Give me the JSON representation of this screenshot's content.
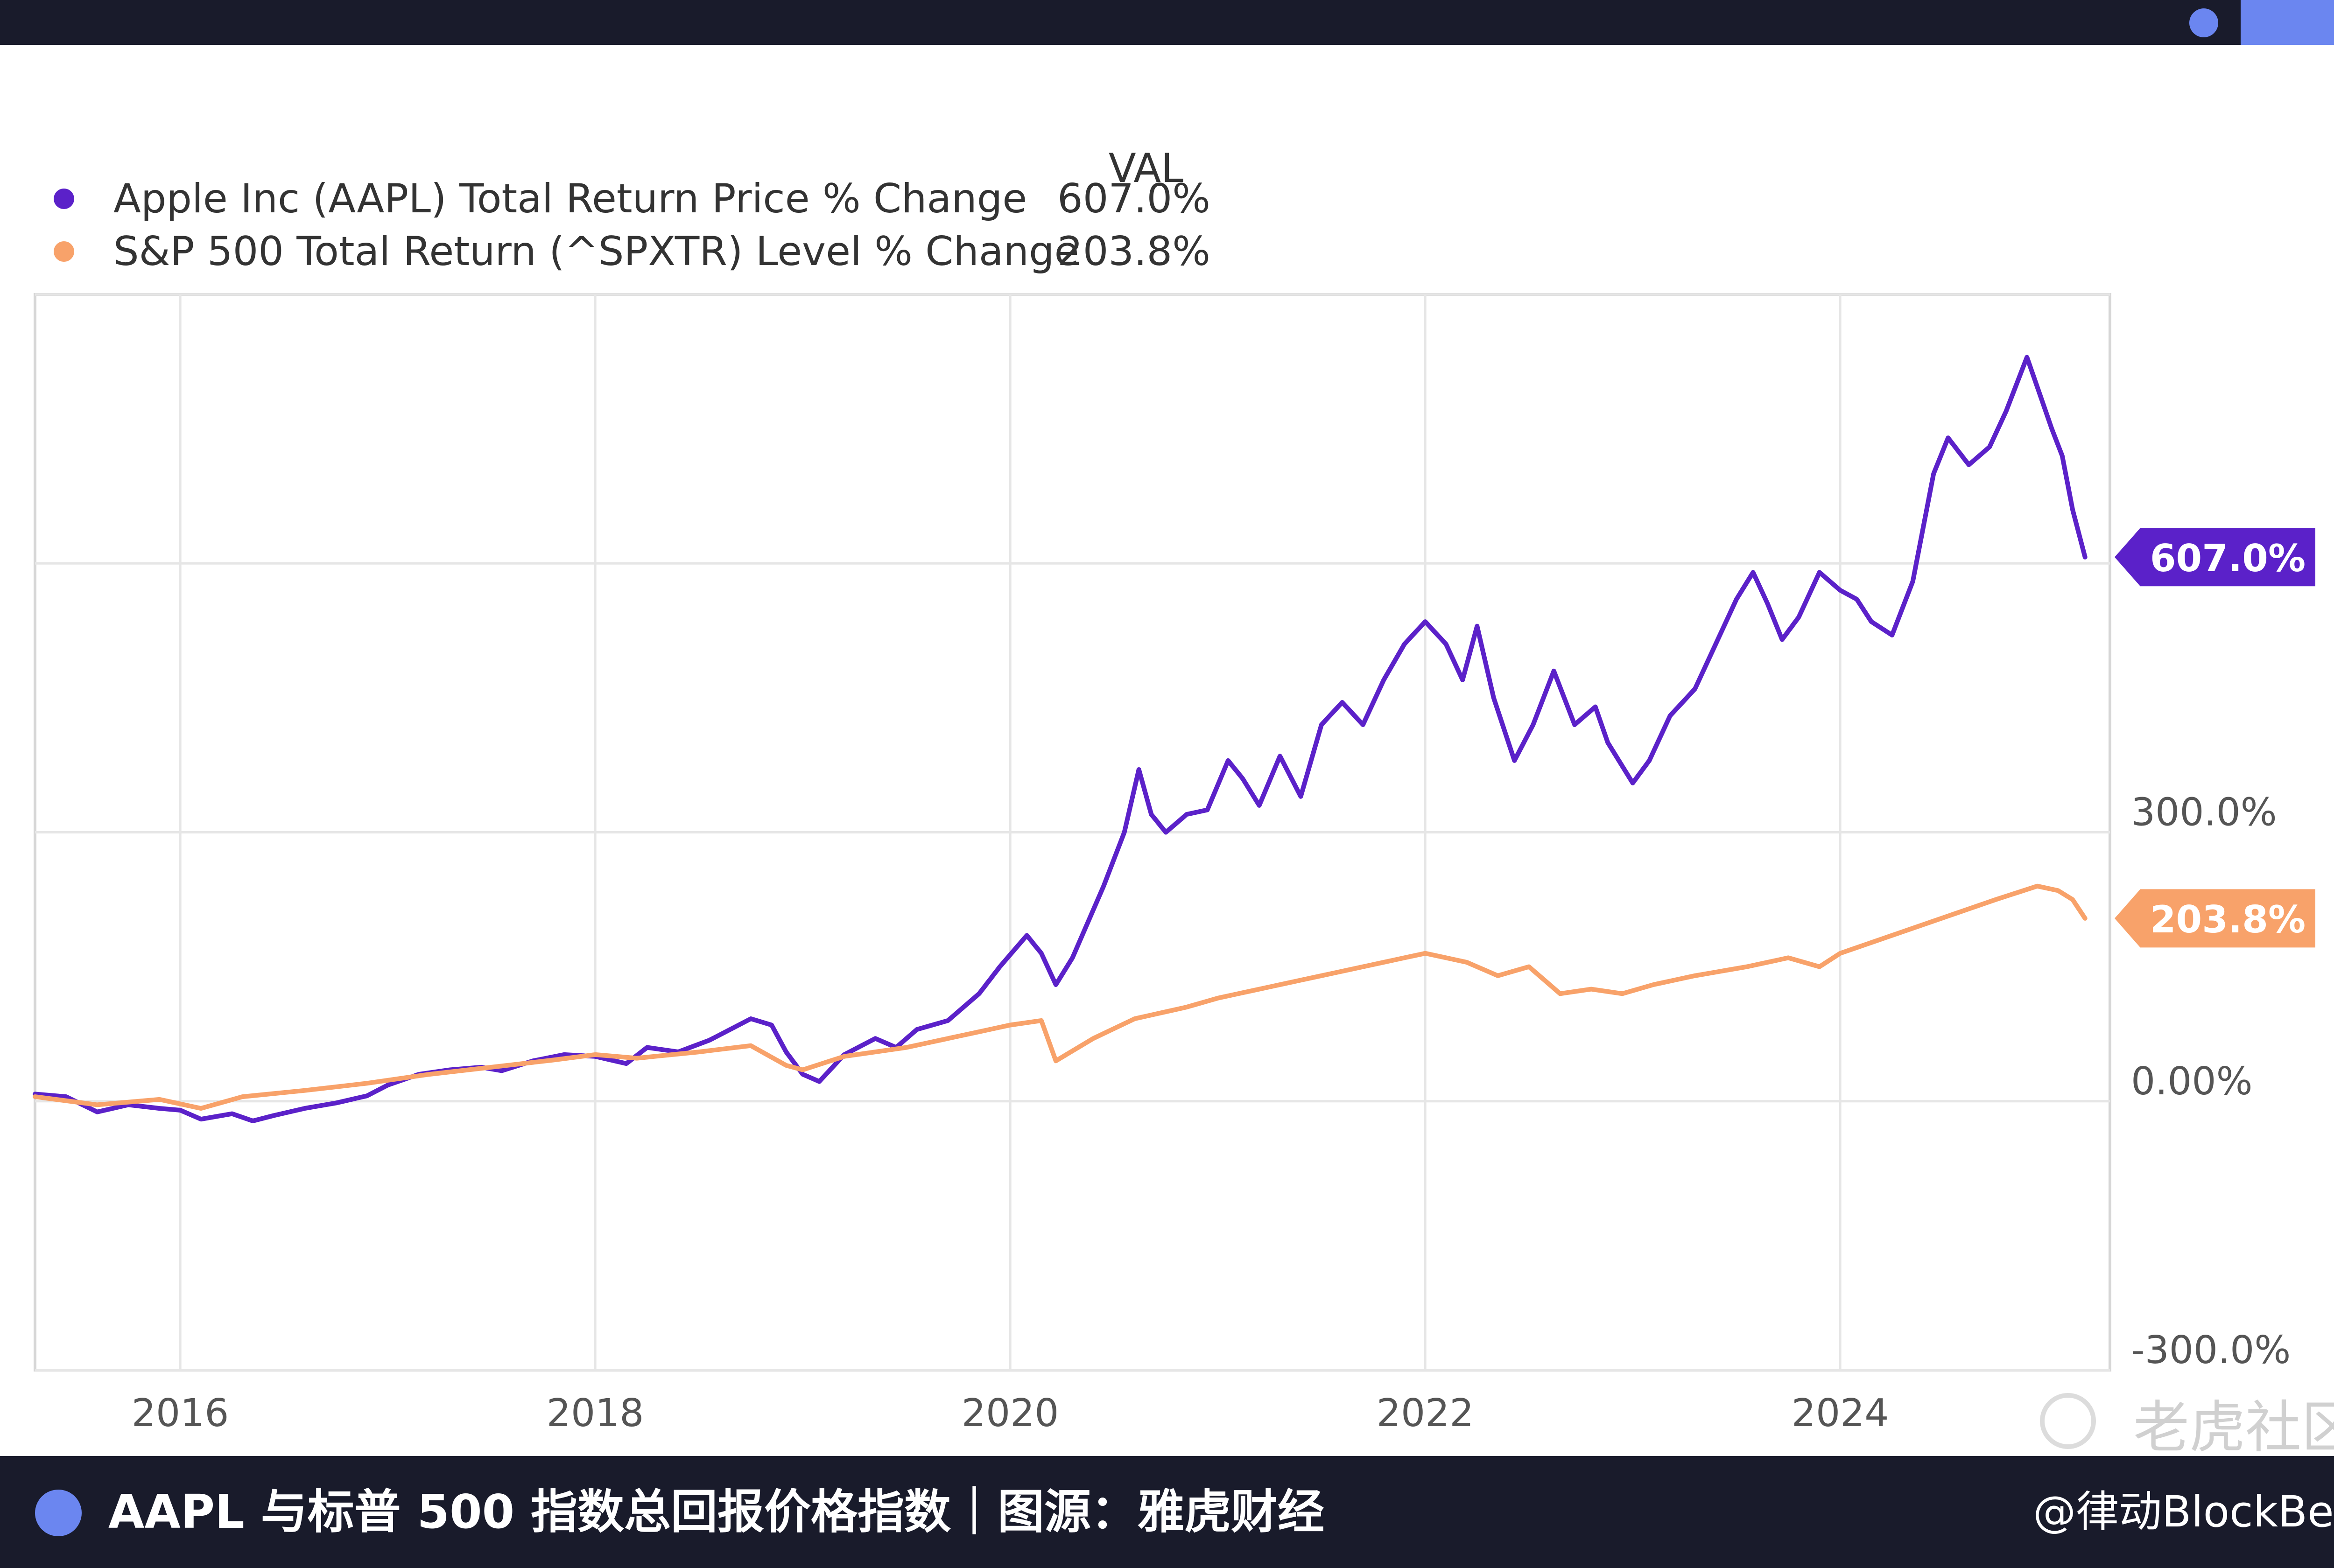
{
  "legend": {
    "header": "VAL",
    "items": [
      {
        "label": "Apple Inc (AAPL) Total Return Price % Change",
        "value": "607.0%",
        "color": "#5b21c9"
      },
      {
        "label": "S&P 500 Total Return (^SPXTR) Level % Change",
        "value": "203.8%",
        "color": "#f8a26a"
      }
    ]
  },
  "chart_data": {
    "type": "line",
    "title": "",
    "xlabel": "",
    "ylabel": "",
    "xlim": [
      2015.3,
      2025.3
    ],
    "ylim": [
      -300,
      900
    ],
    "x_ticks": [
      {
        "value": 2016,
        "label": "2016"
      },
      {
        "value": 2018,
        "label": "2018"
      },
      {
        "value": 2020,
        "label": "2020"
      },
      {
        "value": 2022,
        "label": "2022"
      },
      {
        "value": 2024,
        "label": "2024"
      }
    ],
    "y_ticks": [
      {
        "value": 300,
        "label": "300.0%"
      },
      {
        "value": 0,
        "label": "0.00%"
      },
      {
        "value": -300,
        "label": "-300.0%"
      }
    ],
    "grid": true,
    "series": [
      {
        "name": "Apple Inc (AAPL) Total Return Price % Change",
        "color": "#5b21c9",
        "end_label": "607.0%",
        "points": [
          [
            2015.3,
            8
          ],
          [
            2015.45,
            5
          ],
          [
            2015.6,
            -12
          ],
          [
            2015.75,
            -4
          ],
          [
            2015.9,
            -8
          ],
          [
            2016.0,
            -10
          ],
          [
            2016.1,
            -20
          ],
          [
            2016.25,
            -14
          ],
          [
            2016.35,
            -22
          ],
          [
            2016.45,
            -16
          ],
          [
            2016.6,
            -8
          ],
          [
            2016.75,
            -2
          ],
          [
            2016.9,
            6
          ],
          [
            2017.0,
            18
          ],
          [
            2017.15,
            30
          ],
          [
            2017.3,
            35
          ],
          [
            2017.45,
            38
          ],
          [
            2017.55,
            34
          ],
          [
            2017.7,
            45
          ],
          [
            2017.85,
            52
          ],
          [
            2018.0,
            50
          ],
          [
            2018.15,
            42
          ],
          [
            2018.25,
            60
          ],
          [
            2018.4,
            55
          ],
          [
            2018.55,
            68
          ],
          [
            2018.65,
            80
          ],
          [
            2018.75,
            92
          ],
          [
            2018.85,
            85
          ],
          [
            2018.92,
            55
          ],
          [
            2019.0,
            30
          ],
          [
            2019.08,
            22
          ],
          [
            2019.2,
            52
          ],
          [
            2019.35,
            70
          ],
          [
            2019.45,
            60
          ],
          [
            2019.55,
            80
          ],
          [
            2019.7,
            90
          ],
          [
            2019.85,
            120
          ],
          [
            2019.95,
            150
          ],
          [
            2020.08,
            185
          ],
          [
            2020.15,
            165
          ],
          [
            2020.22,
            130
          ],
          [
            2020.3,
            160
          ],
          [
            2020.45,
            240
          ],
          [
            2020.55,
            300
          ],
          [
            2020.62,
            370
          ],
          [
            2020.68,
            320
          ],
          [
            2020.75,
            300
          ],
          [
            2020.85,
            320
          ],
          [
            2020.95,
            325
          ],
          [
            2021.05,
            380
          ],
          [
            2021.12,
            360
          ],
          [
            2021.2,
            330
          ],
          [
            2021.3,
            385
          ],
          [
            2021.4,
            340
          ],
          [
            2021.5,
            420
          ],
          [
            2021.6,
            445
          ],
          [
            2021.7,
            420
          ],
          [
            2021.8,
            470
          ],
          [
            2021.9,
            510
          ],
          [
            2022.0,
            535
          ],
          [
            2022.1,
            510
          ],
          [
            2022.18,
            470
          ],
          [
            2022.25,
            530
          ],
          [
            2022.33,
            450
          ],
          [
            2022.43,
            380
          ],
          [
            2022.52,
            420
          ],
          [
            2022.62,
            480
          ],
          [
            2022.72,
            420
          ],
          [
            2022.82,
            440
          ],
          [
            2022.88,
            400
          ],
          [
            2023.0,
            355
          ],
          [
            2023.08,
            380
          ],
          [
            2023.18,
            430
          ],
          [
            2023.3,
            460
          ],
          [
            2023.4,
            510
          ],
          [
            2023.5,
            560
          ],
          [
            2023.58,
            590
          ],
          [
            2023.65,
            555
          ],
          [
            2023.72,
            515
          ],
          [
            2023.8,
            540
          ],
          [
            2023.9,
            590
          ],
          [
            2024.0,
            570
          ],
          [
            2024.08,
            560
          ],
          [
            2024.15,
            535
          ],
          [
            2024.25,
            520
          ],
          [
            2024.35,
            580
          ],
          [
            2024.45,
            700
          ],
          [
            2024.52,
            740
          ],
          [
            2024.62,
            710
          ],
          [
            2024.72,
            730
          ],
          [
            2024.8,
            770
          ],
          [
            2024.9,
            830
          ],
          [
            2024.96,
            790
          ],
          [
            2025.02,
            750
          ],
          [
            2025.07,
            720
          ],
          [
            2025.12,
            660
          ],
          [
            2025.18,
            607
          ]
        ]
      },
      {
        "name": "S&P 500 Total Return (^SPXTR) Level % Change",
        "color": "#f8a26a",
        "end_label": "203.8%",
        "points": [
          [
            2015.3,
            5
          ],
          [
            2015.6,
            -4
          ],
          [
            2015.9,
            2
          ],
          [
            2016.1,
            -8
          ],
          [
            2016.3,
            5
          ],
          [
            2016.6,
            12
          ],
          [
            2016.9,
            20
          ],
          [
            2017.2,
            30
          ],
          [
            2017.5,
            38
          ],
          [
            2017.8,
            46
          ],
          [
            2018.0,
            52
          ],
          [
            2018.2,
            48
          ],
          [
            2018.5,
            55
          ],
          [
            2018.75,
            62
          ],
          [
            2018.92,
            40
          ],
          [
            2019.0,
            35
          ],
          [
            2019.2,
            50
          ],
          [
            2019.5,
            60
          ],
          [
            2019.8,
            75
          ],
          [
            2020.0,
            85
          ],
          [
            2020.15,
            90
          ],
          [
            2020.22,
            45
          ],
          [
            2020.4,
            70
          ],
          [
            2020.6,
            92
          ],
          [
            2020.85,
            105
          ],
          [
            2021.0,
            115
          ],
          [
            2021.3,
            130
          ],
          [
            2021.6,
            145
          ],
          [
            2021.9,
            160
          ],
          [
            2022.0,
            165
          ],
          [
            2022.2,
            155
          ],
          [
            2022.35,
            140
          ],
          [
            2022.5,
            150
          ],
          [
            2022.65,
            120
          ],
          [
            2022.8,
            125
          ],
          [
            2022.95,
            120
          ],
          [
            2023.1,
            130
          ],
          [
            2023.3,
            140
          ],
          [
            2023.55,
            150
          ],
          [
            2023.75,
            160
          ],
          [
            2023.9,
            150
          ],
          [
            2024.0,
            165
          ],
          [
            2024.25,
            185
          ],
          [
            2024.5,
            205
          ],
          [
            2024.75,
            225
          ],
          [
            2024.95,
            240
          ],
          [
            2025.05,
            235
          ],
          [
            2025.12,
            225
          ],
          [
            2025.18,
            204
          ]
        ]
      }
    ]
  },
  "footer": {
    "caption": "AAPL 与标普 500 指数总回报价格指数｜图源：雅虎财经",
    "credit": "@律动BlockBeats"
  },
  "watermark": {
    "text": "老虎社区"
  }
}
